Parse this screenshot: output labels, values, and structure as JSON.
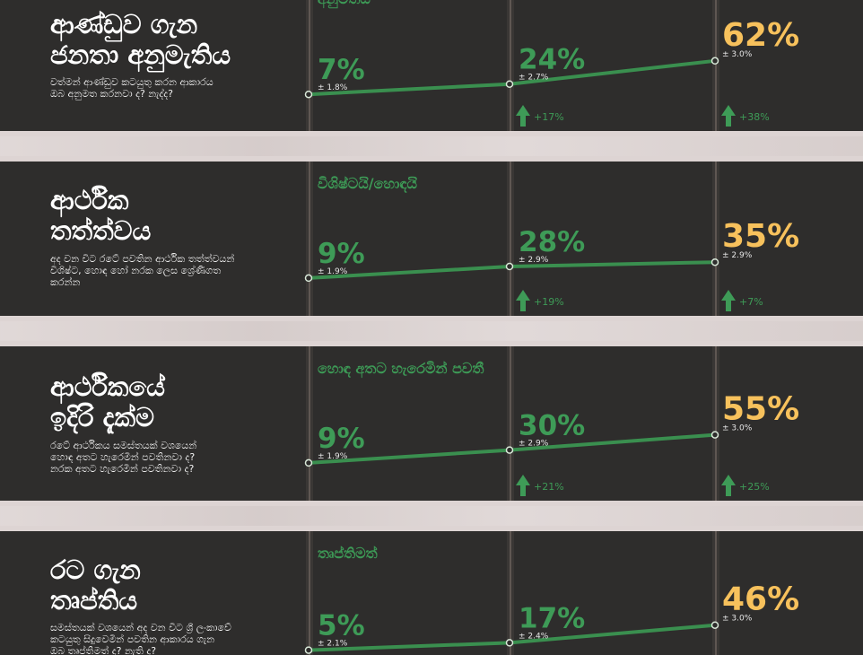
{
  "colors": {
    "background_band": "#ddd4d3",
    "panel": "#2e2d2c",
    "trend_green": "#3a8f4f",
    "latest_yellow": "#f7c15c",
    "title_white": "#ffffff"
  },
  "icons": [
    "up-arrow-icon"
  ],
  "chart_data": [
    {
      "type": "line",
      "title_lines": [
        "ආණ්ඩුව ගැන",
        "ජනතා අනුමැතිය"
      ],
      "question_lines": [
        "වත්මන් ආණ්ඩුව කටයුතු කරන ආකාරය",
        "ඔබ අනුමත කරනවා ද? නැද්ද?"
      ],
      "response_label": "අනුමතයි",
      "series": [
        {
          "values": [
            7,
            24,
            62
          ]
        }
      ],
      "value_labels": [
        "7%",
        "24%",
        "62%"
      ],
      "margins": [
        "± 1.8%",
        "± 2.7%",
        "± 3.0%"
      ],
      "changes": [
        "",
        "+17%",
        "+38%"
      ]
    },
    {
      "type": "line",
      "title_lines": [
        "ආර්ථික",
        "තත්ත්වය"
      ],
      "question_lines": [
        "අද වන විට රටේ පවතින ආර්ථික තත්ත්වයන්",
        "විශිෂ්ට, හොඳ හෝ නරක ලෙස ශ්‍රේණිගත",
        "කරන්න"
      ],
      "response_label": "විශිෂ්ටයි/හොඳයි",
      "series": [
        {
          "values": [
            9,
            28,
            35
          ]
        }
      ],
      "value_labels": [
        "9%",
        "28%",
        "35%"
      ],
      "margins": [
        "± 1.9%",
        "± 2.9%",
        "± 2.9%"
      ],
      "changes": [
        "",
        "+19%",
        "+7%"
      ]
    },
    {
      "type": "line",
      "title_lines": [
        "ආර්ථිකයේ",
        "ඉදිරි දැක්ම"
      ],
      "question_lines": [
        "රටේ ආර්ථිකය සමස්තයක් වශයෙන්",
        "හොඳ අතට හැරෙමින් පවතිනවා ද?",
        "නරක අතට හැරෙමින් පවතිනවා ද?"
      ],
      "response_label": "හොඳ අතට හැරෙමින් පවතී",
      "series": [
        {
          "values": [
            9,
            30,
            55
          ]
        }
      ],
      "value_labels": [
        "9%",
        "30%",
        "55%"
      ],
      "margins": [
        "± 1.9%",
        "± 2.9%",
        "± 3.0%"
      ],
      "changes": [
        "",
        "+21%",
        "+25%"
      ]
    },
    {
      "type": "line",
      "title_lines": [
        "රට ගැන",
        "තෘප්තිය"
      ],
      "question_lines": [
        "සමස්තයක් වශයෙන් අද වන විට ශ්‍රී ලංකාවේ",
        "කටයුතු සිදුවෙමින් පවතින ආකාරය ගැන",
        "ඔබ තෘප්තිමත් ද? නැති ද?"
      ],
      "response_label": "තෘප්තිමත්",
      "series": [
        {
          "values": [
            5,
            17,
            46
          ]
        }
      ],
      "value_labels": [
        "5%",
        "17%",
        "46%"
      ],
      "margins": [
        "± 2.1%",
        "± 2.4%",
        "± 3.0%"
      ],
      "changes": [
        "",
        "",
        ""
      ]
    }
  ]
}
